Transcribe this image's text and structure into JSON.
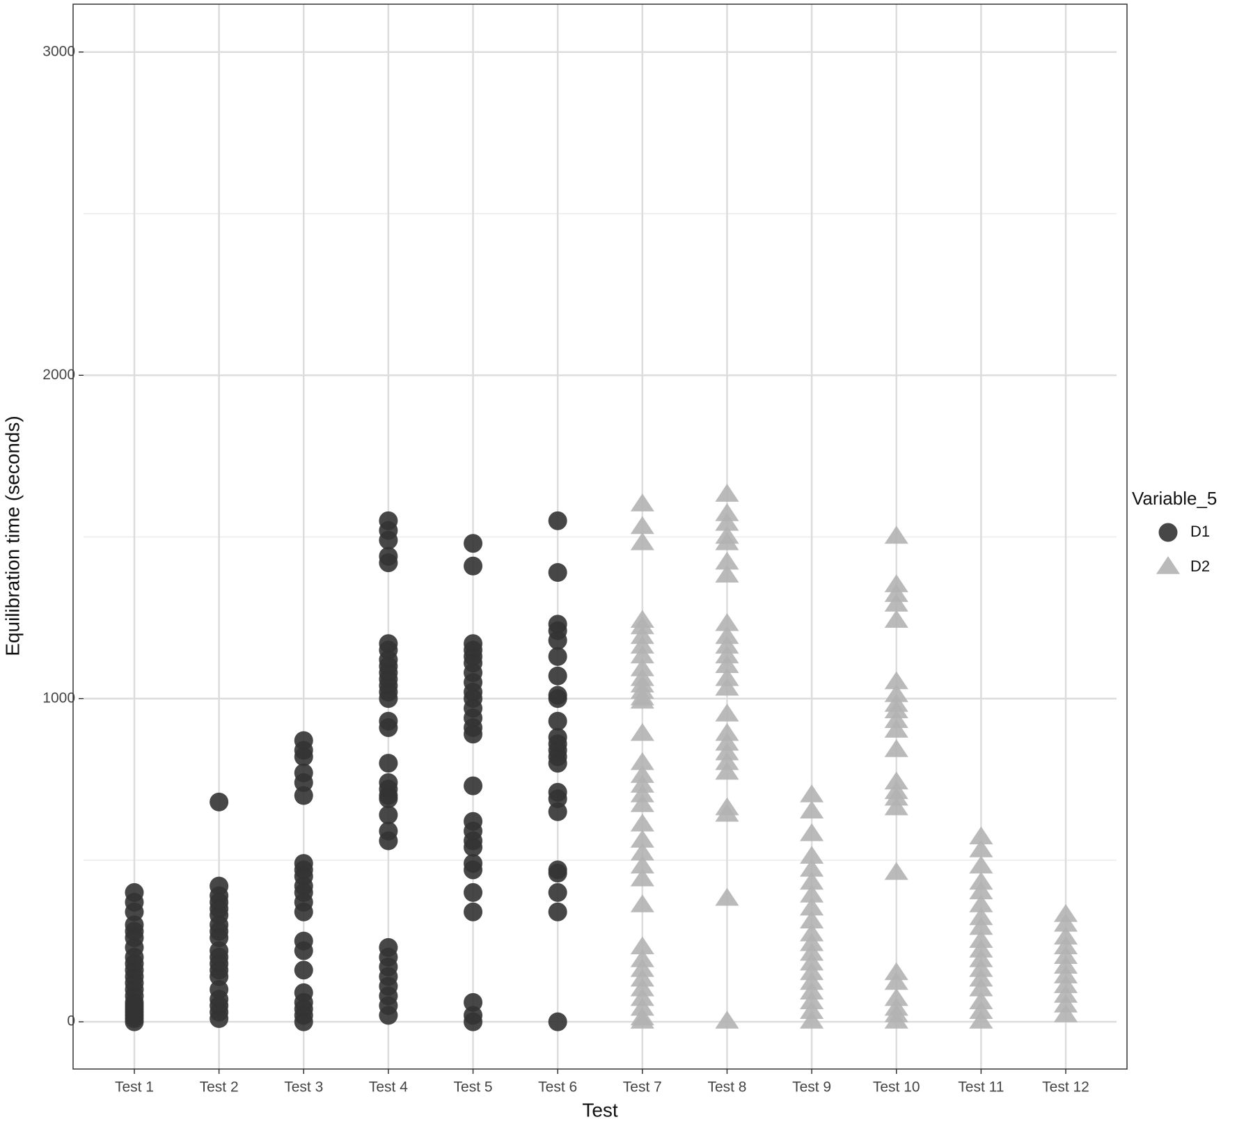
{
  "chart_data": {
    "type": "scatter",
    "x_label": "Test",
    "y_label": "Equilibration time (seconds)",
    "legend_title": "Variable_5",
    "legend": "right",
    "grid": true,
    "categories": [
      "Test 1",
      "Test 2",
      "Test 3",
      "Test 4",
      "Test 5",
      "Test 6",
      "Test 7",
      "Test 8",
      "Test 9",
      "Test 10",
      "Test 11",
      "Test 12"
    ],
    "ylim": [
      -146,
      3148
    ],
    "yticks": [
      0,
      1000,
      2000,
      3000
    ],
    "minor_yticks": [
      500,
      1500,
      2500
    ],
    "series": [
      {
        "name": "D1",
        "color": "#333333",
        "marker": "circle",
        "x": [
          "Test 1",
          "Test 1",
          "Test 1",
          "Test 1",
          "Test 1",
          "Test 1",
          "Test 1",
          "Test 1",
          "Test 1",
          "Test 1",
          "Test 1",
          "Test 1",
          "Test 1",
          "Test 1",
          "Test 1",
          "Test 1",
          "Test 1",
          "Test 1",
          "Test 1",
          "Test 1",
          "Test 1",
          "Test 2",
          "Test 2",
          "Test 2",
          "Test 2",
          "Test 2",
          "Test 2",
          "Test 2",
          "Test 2",
          "Test 2",
          "Test 2",
          "Test 2",
          "Test 2",
          "Test 2",
          "Test 2",
          "Test 2",
          "Test 2",
          "Test 2",
          "Test 2",
          "Test 2",
          "Test 3",
          "Test 3",
          "Test 3",
          "Test 3",
          "Test 3",
          "Test 3",
          "Test 3",
          "Test 3",
          "Test 3",
          "Test 3",
          "Test 3",
          "Test 3",
          "Test 3",
          "Test 3",
          "Test 3",
          "Test 3",
          "Test 3",
          "Test 3",
          "Test 3",
          "Test 3",
          "Test 3",
          "Test 4",
          "Test 4",
          "Test 4",
          "Test 4",
          "Test 4",
          "Test 4",
          "Test 4",
          "Test 4",
          "Test 4",
          "Test 4",
          "Test 4",
          "Test 4",
          "Test 4",
          "Test 4",
          "Test 4",
          "Test 4",
          "Test 4",
          "Test 4",
          "Test 4",
          "Test 4",
          "Test 4",
          "Test 4",
          "Test 4",
          "Test 4",
          "Test 4",
          "Test 4",
          "Test 4",
          "Test 4",
          "Test 4",
          "Test 4",
          "Test 4",
          "Test 4",
          "Test 5",
          "Test 5",
          "Test 5",
          "Test 5",
          "Test 5",
          "Test 5",
          "Test 5",
          "Test 5",
          "Test 5",
          "Test 5",
          "Test 5",
          "Test 5",
          "Test 5",
          "Test 5",
          "Test 5",
          "Test 5",
          "Test 5",
          "Test 5",
          "Test 5",
          "Test 5",
          "Test 5",
          "Test 5",
          "Test 5",
          "Test 5",
          "Test 5",
          "Test 5",
          "Test 6",
          "Test 6",
          "Test 6",
          "Test 6",
          "Test 6",
          "Test 6",
          "Test 6",
          "Test 6",
          "Test 6",
          "Test 6",
          "Test 6",
          "Test 6",
          "Test 6",
          "Test 6",
          "Test 6",
          "Test 6",
          "Test 6",
          "Test 6",
          "Test 6",
          "Test 6",
          "Test 6",
          "Test 6",
          "Test 6"
        ],
        "values": [
          0,
          10,
          20,
          30,
          40,
          50,
          60,
          80,
          100,
          120,
          140,
          160,
          180,
          200,
          230,
          260,
          280,
          300,
          340,
          370,
          400,
          680,
          420,
          390,
          370,
          350,
          330,
          300,
          280,
          260,
          220,
          200,
          180,
          160,
          140,
          100,
          70,
          50,
          30,
          10,
          870,
          840,
          820,
          770,
          740,
          700,
          490,
          470,
          450,
          420,
          400,
          370,
          340,
          250,
          220,
          160,
          90,
          60,
          40,
          20,
          0,
          1550,
          1520,
          1490,
          1440,
          1420,
          1170,
          1150,
          1120,
          1100,
          1080,
          1060,
          1040,
          1020,
          1000,
          930,
          910,
          800,
          740,
          720,
          700,
          690,
          640,
          590,
          560,
          230,
          200,
          170,
          140,
          110,
          80,
          50,
          20,
          1480,
          1410,
          1170,
          1150,
          1130,
          1110,
          1080,
          1050,
          1020,
          1000,
          970,
          940,
          910,
          890,
          730,
          620,
          590,
          560,
          540,
          490,
          470,
          400,
          340,
          60,
          20,
          0,
          1550,
          1390,
          1230,
          1210,
          1180,
          1130,
          1070,
          1010,
          1000,
          930,
          880,
          860,
          840,
          820,
          800,
          710,
          690,
          650,
          470,
          460,
          400,
          340,
          0
        ]
      },
      {
        "name": "D2",
        "color": "#b3b3b3",
        "marker": "triangle",
        "x": [
          "Test 7",
          "Test 7",
          "Test 7",
          "Test 7",
          "Test 7",
          "Test 7",
          "Test 7",
          "Test 7",
          "Test 7",
          "Test 7",
          "Test 7",
          "Test 7",
          "Test 7",
          "Test 7",
          "Test 7",
          "Test 7",
          "Test 7",
          "Test 7",
          "Test 7",
          "Test 7",
          "Test 7",
          "Test 7",
          "Test 7",
          "Test 7",
          "Test 7",
          "Test 7",
          "Test 7",
          "Test 7",
          "Test 7",
          "Test 7",
          "Test 7",
          "Test 7",
          "Test 7",
          "Test 7",
          "Test 7",
          "Test 8",
          "Test 8",
          "Test 8",
          "Test 8",
          "Test 8",
          "Test 8",
          "Test 8",
          "Test 8",
          "Test 8",
          "Test 8",
          "Test 8",
          "Test 8",
          "Test 8",
          "Test 8",
          "Test 8",
          "Test 8",
          "Test 8",
          "Test 8",
          "Test 8",
          "Test 8",
          "Test 8",
          "Test 8",
          "Test 8",
          "Test 8",
          "Test 9",
          "Test 9",
          "Test 9",
          "Test 9",
          "Test 9",
          "Test 9",
          "Test 9",
          "Test 9",
          "Test 9",
          "Test 9",
          "Test 9",
          "Test 9",
          "Test 9",
          "Test 9",
          "Test 9",
          "Test 9",
          "Test 9",
          "Test 9",
          "Test 9",
          "Test 10",
          "Test 10",
          "Test 10",
          "Test 10",
          "Test 10",
          "Test 10",
          "Test 10",
          "Test 10",
          "Test 10",
          "Test 10",
          "Test 10",
          "Test 10",
          "Test 10",
          "Test 10",
          "Test 10",
          "Test 10",
          "Test 10",
          "Test 10",
          "Test 10",
          "Test 10",
          "Test 10",
          "Test 10",
          "Test 10",
          "Test 11",
          "Test 11",
          "Test 11",
          "Test 11",
          "Test 11",
          "Test 11",
          "Test 11",
          "Test 11",
          "Test 11",
          "Test 11",
          "Test 11",
          "Test 11",
          "Test 11",
          "Test 11",
          "Test 11",
          "Test 11",
          "Test 11",
          "Test 12",
          "Test 12",
          "Test 12",
          "Test 12",
          "Test 12",
          "Test 12",
          "Test 12",
          "Test 12",
          "Test 12",
          "Test 12",
          "Test 12"
        ],
        "values": [
          1600,
          1530,
          1480,
          1240,
          1220,
          1190,
          1160,
          1130,
          1090,
          1060,
          1040,
          1020,
          1000,
          990,
          890,
          800,
          760,
          730,
          700,
          670,
          610,
          560,
          520,
          480,
          440,
          360,
          230,
          190,
          160,
          130,
          100,
          70,
          40,
          10,
          0,
          1630,
          1570,
          1540,
          1500,
          1480,
          1420,
          1380,
          1230,
          1190,
          1160,
          1130,
          1100,
          1060,
          1030,
          950,
          890,
          860,
          830,
          800,
          770,
          660,
          640,
          380,
          0,
          700,
          650,
          580,
          510,
          470,
          430,
          390,
          350,
          310,
          270,
          240,
          210,
          180,
          150,
          120,
          90,
          60,
          30,
          0,
          1500,
          1350,
          1320,
          1290,
          1240,
          1050,
          1010,
          980,
          960,
          930,
          900,
          840,
          740,
          710,
          690,
          660,
          460,
          150,
          120,
          70,
          40,
          20,
          0,
          570,
          530,
          480,
          430,
          400,
          360,
          320,
          290,
          250,
          220,
          190,
          160,
          130,
          100,
          60,
          30,
          0,
          330,
          300,
          260,
          230,
          200,
          170,
          140,
          110,
          80,
          50,
          20
        ]
      }
    ]
  }
}
